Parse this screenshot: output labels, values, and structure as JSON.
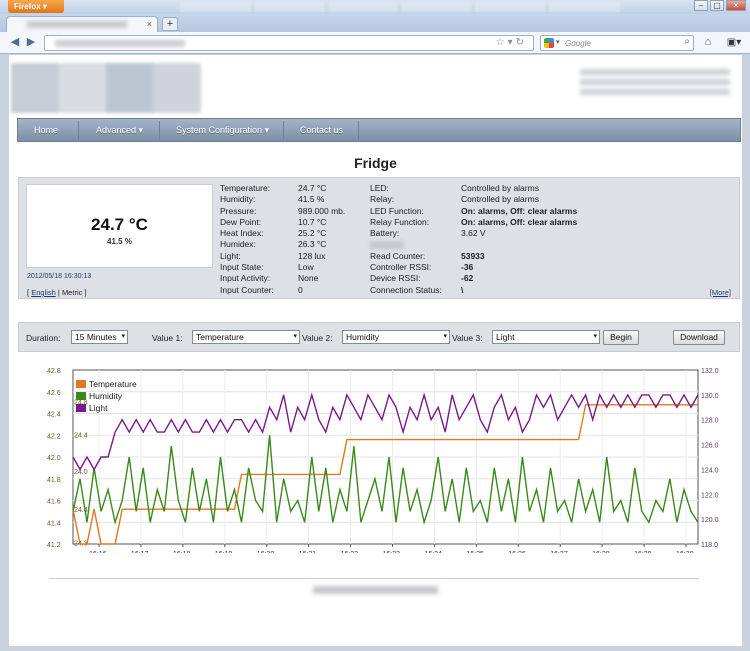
{
  "browser": {
    "app_button": "Firefox",
    "search_placeholder": "Google",
    "window_controls": [
      "minimize-icon",
      "maximize-icon",
      "close-icon"
    ]
  },
  "menu": {
    "items": [
      {
        "label": "Home",
        "has_dropdown": false
      },
      {
        "label": "Advanced",
        "has_dropdown": true
      },
      {
        "label": "System Configuration",
        "has_dropdown": true
      },
      {
        "label": "Contact us",
        "has_dropdown": false
      }
    ]
  },
  "device": {
    "title": "Fridge",
    "reading_main": "24.7 °C",
    "reading_sub": "41.5 %",
    "timestamp": "2012/05/18 16:30:13",
    "units": {
      "open": "[",
      "english": "English",
      "sep": "|",
      "metric": "Metric",
      "close": "]"
    },
    "more_link": "[More]",
    "left_fields": [
      {
        "label": "Temperature:",
        "value": "24.7 °C"
      },
      {
        "label": "Humidity:",
        "value": "41.5 %"
      },
      {
        "label": "Pressure:",
        "value": "989.000 mb."
      },
      {
        "label": "Dew Point:",
        "value": "10.7 °C"
      },
      {
        "label": "Heat Index:",
        "value": "25.2 °C"
      },
      {
        "label": "Humidex:",
        "value": "26.3 °C"
      },
      {
        "label": "Light:",
        "value": "128 lux"
      },
      {
        "label": "Input State:",
        "value": "Low"
      },
      {
        "label": "Input Activity:",
        "value": "None"
      },
      {
        "label": "Input Counter:",
        "value": "0"
      }
    ],
    "right_fields": [
      {
        "label": "LED:",
        "value": "Controlled by alarms",
        "strong": false
      },
      {
        "label": "Relay:",
        "value": "Controlled by alarms",
        "strong": false
      },
      {
        "label": "LED Function:",
        "value": "On: alarms, Off: clear alarms",
        "strong": true
      },
      {
        "label": "Relay Function:",
        "value": "On: alarms, Off: clear alarms",
        "strong": true
      },
      {
        "label": "Battery:",
        "value": "3.62 V",
        "strong": false
      },
      {
        "label": "",
        "value": "",
        "strong": false
      },
      {
        "label": "Read Counter:",
        "value": "53933",
        "strong": true
      },
      {
        "label": "Controller RSSI:",
        "value": "-36",
        "strong": true
      },
      {
        "label": "Device RSSI:",
        "value": "-62",
        "strong": true
      },
      {
        "label": "Connection Status:",
        "value": "\\",
        "strong": true
      }
    ]
  },
  "controls": {
    "duration_label": "Duration:",
    "duration_value": "15 Minutes",
    "value1_label": "Value 1:",
    "value1": "Temperature",
    "value2_label": "Value 2:",
    "value2": "Humidity",
    "value3_label": "Value 3:",
    "value3": "Light",
    "begin_button": "Begin",
    "download_button": "Download"
  },
  "chart_data": {
    "type": "line",
    "x_ticks": [
      "16:16",
      "16:17",
      "16:18",
      "16:19",
      "16:20",
      "16:21",
      "16:22",
      "16:23",
      "16:24",
      "16:25",
      "16:26",
      "16:27",
      "16:28",
      "16:29",
      "16:30"
    ],
    "y_left_ticks": [
      "42.8",
      "42.6",
      "42.4",
      "42.2",
      "42.0",
      "41.8",
      "41.6",
      "41.4",
      "41.2"
    ],
    "y_left_inner_ticks": [
      "24.8",
      "24.4",
      "24.0",
      "24.4",
      "24.3"
    ],
    "y_right_ticks": [
      "132.0",
      "130.0",
      "128.0",
      "126.0",
      "124.0",
      "122.0",
      "120.0",
      "118.0"
    ],
    "ylim_left_humidity": [
      41.2,
      42.8
    ],
    "ylim_right_light": [
      118,
      132
    ],
    "grid": true,
    "legend_position": "top-left",
    "colors": {
      "temperature": "#e07a20",
      "humidity": "#3a8a1a",
      "light": "#7a1a8a"
    },
    "series": [
      {
        "name": "Temperature",
        "axis": "temp",
        "values": [
          24.4,
          24.3,
          24.3,
          24.4,
          24.3,
          24.3,
          24.3,
          24.4,
          24.4,
          24.4,
          24.4,
          24.4,
          24.4,
          24.4,
          24.4,
          24.4,
          24.4,
          24.4,
          24.4,
          24.4,
          24.4,
          24.4,
          24.4,
          24.4,
          24.5,
          24.5,
          24.5,
          24.5,
          24.5,
          24.5,
          24.5,
          24.5,
          24.5,
          24.5,
          24.5,
          24.5,
          24.5,
          24.5,
          24.5,
          24.6,
          24.6,
          24.6,
          24.6,
          24.6,
          24.6,
          24.6,
          24.6,
          24.6,
          24.6,
          24.6,
          24.6,
          24.6,
          24.6,
          24.6,
          24.6,
          24.6,
          24.6,
          24.6,
          24.6,
          24.6,
          24.6,
          24.6,
          24.6,
          24.6,
          24.6,
          24.6,
          24.6,
          24.6,
          24.6,
          24.6,
          24.6,
          24.6,
          24.6,
          24.7,
          24.7,
          24.7,
          24.7,
          24.7,
          24.7,
          24.7,
          24.7,
          24.7,
          24.7,
          24.7,
          24.7,
          24.7,
          24.7,
          24.7,
          24.7,
          24.7
        ]
      },
      {
        "name": "Humidity",
        "axis": "left",
        "values": [
          41.5,
          41.8,
          41.4,
          41.9,
          41.5,
          41.7,
          41.4,
          41.6,
          42.0,
          41.5,
          41.9,
          41.4,
          41.7,
          41.5,
          42.1,
          41.6,
          41.4,
          41.9,
          41.5,
          41.8,
          41.4,
          42.0,
          41.5,
          41.7,
          41.4,
          41.9,
          41.6,
          41.5,
          42.2,
          41.4,
          41.8,
          41.5,
          41.6,
          41.4,
          42.0,
          41.5,
          41.9,
          41.4,
          41.7,
          41.5,
          42.1,
          41.4,
          41.6,
          41.8,
          41.5,
          42.0,
          41.4,
          41.9,
          41.5,
          41.7,
          41.4,
          41.6,
          42.0,
          41.5,
          41.8,
          41.4,
          41.9,
          41.5,
          41.6,
          41.4,
          41.9,
          41.5,
          41.8,
          41.4,
          42.0,
          41.5,
          41.7,
          41.4,
          41.9,
          41.5,
          41.6,
          41.4,
          41.8,
          41.5,
          41.7,
          41.4,
          42.0,
          41.5,
          41.6,
          41.4,
          41.9,
          41.5,
          41.4,
          41.6,
          41.5,
          41.8,
          41.4,
          41.7,
          41.5,
          41.4
        ]
      },
      {
        "name": "Light",
        "axis": "right",
        "values": [
          125,
          124,
          125,
          124,
          125,
          125,
          127,
          128,
          127,
          128,
          127,
          128,
          127,
          127,
          128,
          127,
          128,
          127,
          127,
          128,
          127,
          128,
          127,
          128,
          128,
          127,
          128,
          127,
          129,
          128,
          130,
          127,
          129,
          128,
          130,
          128,
          127,
          129,
          128,
          130,
          129,
          128,
          130,
          129,
          128,
          130,
          129,
          127,
          129,
          128,
          130,
          128,
          129,
          127,
          130,
          128,
          129,
          130,
          128,
          127,
          129,
          130,
          128,
          129,
          127,
          128,
          130,
          129,
          130,
          128,
          129,
          130,
          129,
          130,
          128,
          130,
          129,
          130,
          129,
          130,
          129,
          130,
          130,
          129,
          130,
          130,
          129,
          130,
          129,
          130
        ]
      }
    ],
    "temp_range": [
      24.3,
      24.8
    ]
  }
}
